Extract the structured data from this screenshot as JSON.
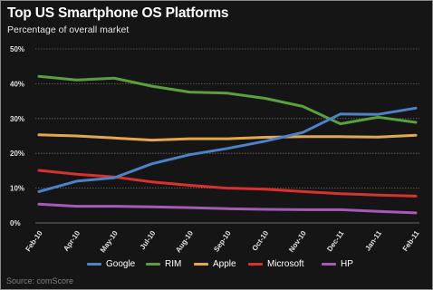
{
  "title": "Top US Smartphone OS Platforms",
  "subtitle": "Percentage of overall market",
  "source": "Source: comScore",
  "colors": {
    "background": "#151515",
    "grid": "#6a6a6a",
    "text": "#e0e0e0",
    "Google": "#4b82c8",
    "RIM": "#5aa03c",
    "Apple": "#e3a84b",
    "Microsoft": "#d8312e",
    "HP": "#a35bb5"
  },
  "chart_data": {
    "type": "line",
    "title": "Top US Smartphone OS Platforms",
    "subtitle": "Percentage of overall market",
    "x": [
      "Feb-10",
      "Apr-10",
      "May-10",
      "Jul-10",
      "Aug-10",
      "Sep-10",
      "Oct-10",
      "Nov-10",
      "Dec-11",
      "Jan-11",
      "Feb-11"
    ],
    "xlabel": "",
    "ylabel": "",
    "ylim": [
      0,
      50
    ],
    "yticks": [
      "0%",
      "10%",
      "20%",
      "30%",
      "40%",
      "50%"
    ],
    "grid": true,
    "legend_position": "bottom",
    "series": [
      {
        "name": "Google",
        "color": "#4b82c8",
        "values": [
          9.0,
          12.0,
          13.0,
          17.0,
          19.6,
          21.4,
          23.5,
          26.0,
          31.3,
          31.2,
          33.0
        ]
      },
      {
        "name": "RIM",
        "color": "#5aa03c",
        "values": [
          42.1,
          41.1,
          41.6,
          39.3,
          37.6,
          37.3,
          35.8,
          33.5,
          28.5,
          30.4,
          28.9
        ]
      },
      {
        "name": "Apple",
        "color": "#e3a84b",
        "values": [
          25.3,
          25.0,
          24.4,
          23.8,
          24.2,
          24.2,
          24.6,
          24.8,
          24.8,
          24.7,
          25.2
        ]
      },
      {
        "name": "Microsoft",
        "color": "#d8312e",
        "values": [
          15.1,
          14.0,
          13.2,
          11.8,
          10.8,
          10.0,
          9.7,
          9.0,
          8.4,
          8.0,
          7.7
        ]
      },
      {
        "name": "HP",
        "color": "#a35bb5",
        "values": [
          5.4,
          4.8,
          4.8,
          4.6,
          4.4,
          4.1,
          3.9,
          3.8,
          3.8,
          3.3,
          2.9
        ]
      }
    ]
  }
}
